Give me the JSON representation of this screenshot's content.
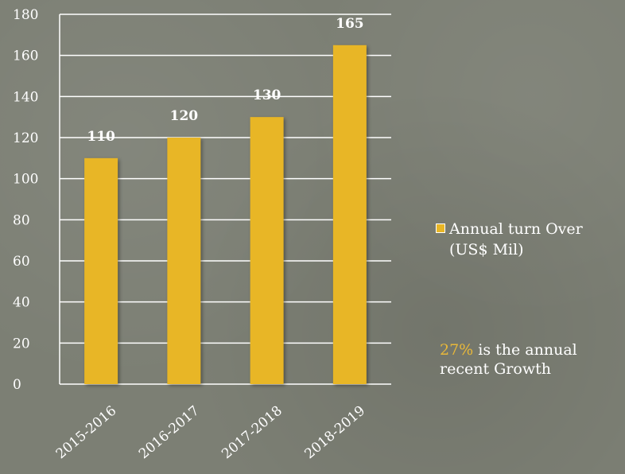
{
  "chart_data": {
    "type": "bar",
    "categories": [
      "2015-2016",
      "2016-2017",
      "2017-2018",
      "2018-2019"
    ],
    "series": [
      {
        "name": "Annual turn Over (US$ Mil)",
        "values": [
          110,
          120,
          130,
          165
        ]
      }
    ],
    "data_labels": [
      "110",
      "120",
      "130",
      "165"
    ],
    "ylim": [
      0,
      180
    ],
    "y_ticks": [
      0,
      20,
      40,
      60,
      80,
      100,
      120,
      140,
      160,
      180
    ],
    "grid": true,
    "legend_position": "right",
    "bar_color": "#e8b626"
  },
  "legend": {
    "label": "Annual turn Over (US$ Mil)",
    "color": "#e8b626"
  },
  "note": {
    "percent": "27%",
    "text": " is the annual recent Growth",
    "accent_color": "#e8b83a"
  }
}
